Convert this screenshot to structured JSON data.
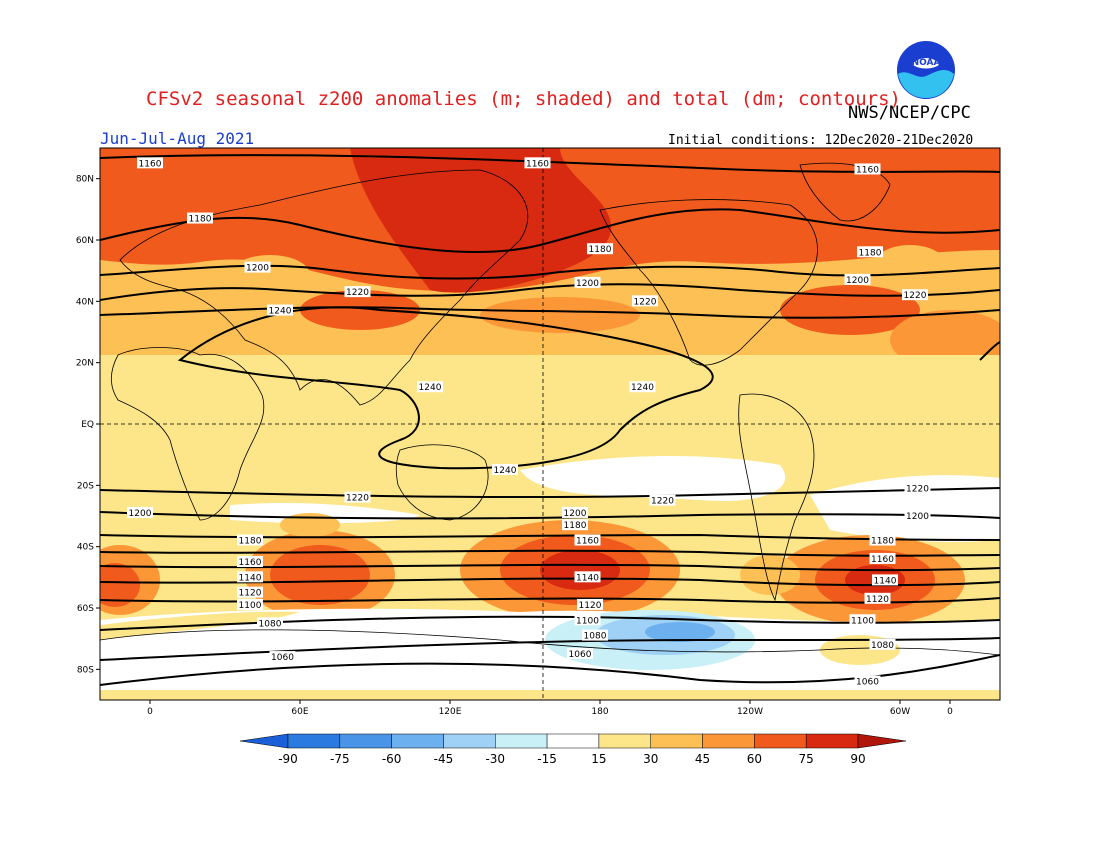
{
  "header": {
    "title": "CFSv2 seasonal z200 anomalies (m; shaded) and total (dm; contours)",
    "org": "NWS/NCEP/CPC",
    "season": "Jun-Jul-Aug 2021",
    "initial_conditions": "Initial conditions: 12Dec2020-21Dec2020",
    "logo_text": "NOAA"
  },
  "map": {
    "lat_labels": [
      "80N",
      "60N",
      "40N",
      "20N",
      "EQ",
      "20S",
      "40S",
      "60S",
      "80S"
    ],
    "lon_labels": [
      "0",
      "60E",
      "120E",
      "180",
      "120W",
      "60W",
      "0"
    ],
    "contour_labels": [
      {
        "text": "1160",
        "lat": 85,
        "lon": 0
      },
      {
        "text": "1160",
        "lat": 85,
        "lon": 155
      },
      {
        "text": "1160",
        "lat": 83,
        "lon": -73
      },
      {
        "text": "1180",
        "lat": 67,
        "lon": 20
      },
      {
        "text": "1180",
        "lat": 57,
        "lon": 180
      },
      {
        "text": "1180",
        "lat": 56,
        "lon": -72
      },
      {
        "text": "1200",
        "lat": 51,
        "lon": 43
      },
      {
        "text": "1200",
        "lat": 46,
        "lon": 175
      },
      {
        "text": "1200",
        "lat": 47,
        "lon": -77
      },
      {
        "text": "1220",
        "lat": 43,
        "lon": 83
      },
      {
        "text": "1220",
        "lat": 40,
        "lon": -162
      },
      {
        "text": "1220",
        "lat": 42,
        "lon": -54
      },
      {
        "text": "1240",
        "lat": 37,
        "lon": 52
      },
      {
        "text": "1240",
        "lat": 12,
        "lon": 112
      },
      {
        "text": "1240",
        "lat": 12,
        "lon": -163
      },
      {
        "text": "1240",
        "lat": -15,
        "lon": 142
      },
      {
        "text": "1220",
        "lat": -24,
        "lon": 83
      },
      {
        "text": "1220",
        "lat": -25,
        "lon": -155
      },
      {
        "text": "1220",
        "lat": -21,
        "lon": -53
      },
      {
        "text": "1200",
        "lat": -29,
        "lon": -4
      },
      {
        "text": "1200",
        "lat": -29,
        "lon": 170
      },
      {
        "text": "1200",
        "lat": -30,
        "lon": -53
      },
      {
        "text": "1180",
        "lat": -33,
        "lon": 170
      },
      {
        "text": "1180",
        "lat": -38,
        "lon": 40
      },
      {
        "text": "1180",
        "lat": -38,
        "lon": -67
      },
      {
        "text": "1160",
        "lat": -38,
        "lon": 175
      },
      {
        "text": "1160",
        "lat": -45,
        "lon": 40
      },
      {
        "text": "1160",
        "lat": -44,
        "lon": -67
      },
      {
        "text": "1140",
        "lat": -50,
        "lon": 40
      },
      {
        "text": "1140",
        "lat": -50,
        "lon": 175
      },
      {
        "text": "1140",
        "lat": -51,
        "lon": -66
      },
      {
        "text": "1120",
        "lat": -55,
        "lon": 40
      },
      {
        "text": "1120",
        "lat": -59,
        "lon": 176
      },
      {
        "text": "1120",
        "lat": -57,
        "lon": -69
      },
      {
        "text": "1100",
        "lat": -59,
        "lon": 40
      },
      {
        "text": "1100",
        "lat": -64,
        "lon": 175
      },
      {
        "text": "1100",
        "lat": -64,
        "lon": -75
      },
      {
        "text": "1080",
        "lat": -65,
        "lon": 48
      },
      {
        "text": "1080",
        "lat": -69,
        "lon": 178
      },
      {
        "text": "1080",
        "lat": -72,
        "lon": -67
      },
      {
        "text": "1060",
        "lat": -76,
        "lon": 53
      },
      {
        "text": "1060",
        "lat": -75,
        "lon": 172
      },
      {
        "text": "1060",
        "lat": -84,
        "lon": -73
      }
    ]
  },
  "colorbar": {
    "labels": [
      "-90",
      "-75",
      "-60",
      "-45",
      "-30",
      "-15",
      "15",
      "30",
      "45",
      "60",
      "75",
      "90"
    ],
    "colors": [
      "#1a5fd8",
      "#2b7ae0",
      "#4a94e8",
      "#6db0ef",
      "#9fd0f5",
      "#c9f0f7",
      "#ffffff",
      "#fde58a",
      "#fdc055",
      "#fc9738",
      "#f05a1c",
      "#d72a10",
      "#b0160a"
    ]
  }
}
